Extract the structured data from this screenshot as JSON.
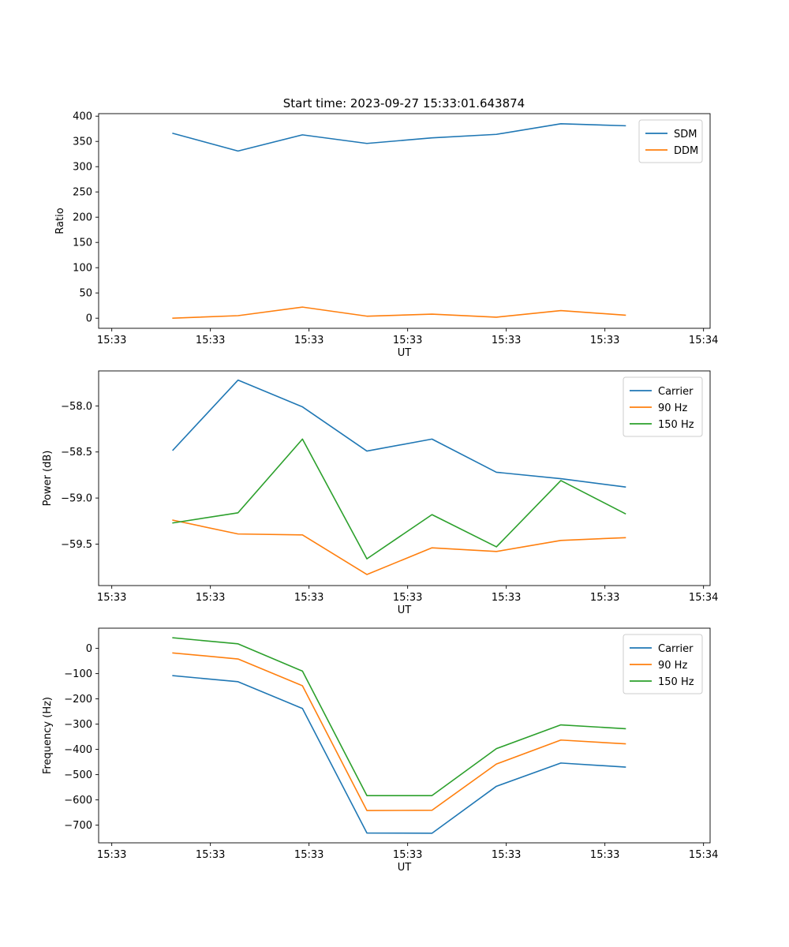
{
  "figure_title": "Start time: 2023-09-27 15:33:01.643874",
  "chart_data": [
    {
      "type": "line",
      "title": "Start time: 2023-09-27 15:33:01.643874",
      "xlabel": "UT",
      "ylabel": "Ratio",
      "xlim": [
        0,
        9.3
      ],
      "ylim": [
        -20,
        405
      ],
      "xticks": [
        0.2,
        1.7,
        3.2,
        4.7,
        6.2,
        7.7,
        9.2
      ],
      "xtick_labels": [
        "15:33",
        "15:33",
        "15:33",
        "15:33",
        "15:33",
        "15:33",
        "15:34"
      ],
      "yticks": [
        0,
        50,
        100,
        150,
        200,
        250,
        300,
        350,
        400
      ],
      "ytick_labels": [
        "0",
        "50",
        "100",
        "150",
        "200",
        "250",
        "300",
        "350",
        "400"
      ],
      "x": [
        1.13,
        2.12,
        3.1,
        4.08,
        5.07,
        6.05,
        7.03,
        8.01
      ],
      "legend_position": "upper right",
      "series": [
        {
          "name": "SDM",
          "color": "#1f77b4",
          "values": [
            366,
            331,
            363,
            346,
            357,
            364,
            385,
            381
          ]
        },
        {
          "name": "DDM",
          "color": "#ff7f0e",
          "values": [
            0,
            5,
            22,
            4,
            8,
            2,
            15,
            6
          ]
        }
      ]
    },
    {
      "type": "line",
      "title": "",
      "xlabel": "UT",
      "ylabel": "Power (dB)",
      "xlim": [
        0,
        9.3
      ],
      "ylim": [
        -59.95,
        -57.62
      ],
      "xticks": [
        0.2,
        1.7,
        3.2,
        4.7,
        6.2,
        7.7,
        9.2
      ],
      "xtick_labels": [
        "15:33",
        "15:33",
        "15:33",
        "15:33",
        "15:33",
        "15:33",
        "15:34"
      ],
      "yticks": [
        -59.5,
        -59.0,
        -58.5,
        -58.0
      ],
      "ytick_labels": [
        "−59.5",
        "−59.0",
        "−58.5",
        "−58.0"
      ],
      "x": [
        1.13,
        2.12,
        3.1,
        4.08,
        5.07,
        6.05,
        7.03,
        8.01
      ],
      "legend_position": "upper right",
      "series": [
        {
          "name": "Carrier",
          "color": "#1f77b4",
          "values": [
            -58.48,
            -57.72,
            -58.01,
            -58.49,
            -58.36,
            -58.72,
            -58.79,
            -58.88
          ]
        },
        {
          "name": "90 Hz",
          "color": "#ff7f0e",
          "values": [
            -59.24,
            -59.39,
            -59.4,
            -59.83,
            -59.54,
            -59.58,
            -59.46,
            -59.43
          ]
        },
        {
          "name": "150 Hz",
          "color": "#2ca02c",
          "values": [
            -59.27,
            -59.16,
            -58.36,
            -59.66,
            -59.18,
            -59.53,
            -58.81,
            -59.17
          ]
        }
      ]
    },
    {
      "type": "line",
      "title": "",
      "xlabel": "UT",
      "ylabel": "Frequency (Hz)",
      "xlim": [
        0,
        9.3
      ],
      "ylim": [
        -770,
        80
      ],
      "xticks": [
        0.2,
        1.7,
        3.2,
        4.7,
        6.2,
        7.7,
        9.2
      ],
      "xtick_labels": [
        "15:33",
        "15:33",
        "15:33",
        "15:33",
        "15:33",
        "15:33",
        "15:34"
      ],
      "yticks": [
        -700,
        -600,
        -500,
        -400,
        -300,
        -200,
        -100,
        0
      ],
      "ytick_labels": [
        "−700",
        "−600",
        "−500",
        "−400",
        "−300",
        "−200",
        "−100",
        "0"
      ],
      "x": [
        1.13,
        2.12,
        3.1,
        4.08,
        5.07,
        6.05,
        7.03,
        8.01
      ],
      "legend_position": "upper right",
      "series": [
        {
          "name": "Carrier",
          "color": "#1f77b4",
          "values": [
            -108,
            -132,
            -238,
            -731,
            -732,
            -546,
            -454,
            -470
          ]
        },
        {
          "name": "90 Hz",
          "color": "#ff7f0e",
          "values": [
            -18,
            -42,
            -148,
            -642,
            -641,
            -458,
            -363,
            -378
          ]
        },
        {
          "name": "150 Hz",
          "color": "#2ca02c",
          "values": [
            42,
            18,
            -90,
            -583,
            -583,
            -397,
            -303,
            -318
          ]
        }
      ]
    }
  ]
}
